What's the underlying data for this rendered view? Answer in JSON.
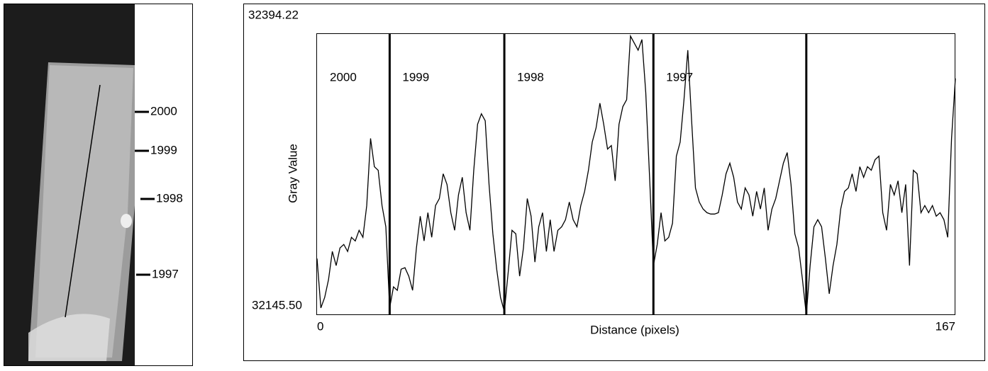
{
  "image_panel": {
    "labels": [
      "2000",
      "1999",
      "1998",
      "1997"
    ]
  },
  "chart_data": {
    "type": "line",
    "xlabel": "Distance (pixels)",
    "ylabel": "Gray Value",
    "x": [
      0,
      1,
      2,
      3,
      4,
      5,
      6,
      7,
      8,
      9,
      10,
      11,
      12,
      13,
      14,
      15,
      16,
      17,
      18,
      19,
      20,
      21,
      22,
      23,
      24,
      25,
      26,
      27,
      28,
      29,
      30,
      31,
      32,
      33,
      34,
      35,
      36,
      37,
      38,
      39,
      40,
      41,
      42,
      43,
      44,
      45,
      46,
      47,
      48,
      49,
      50,
      51,
      52,
      53,
      54,
      55,
      56,
      57,
      58,
      59,
      60,
      61,
      62,
      63,
      64,
      65,
      66,
      67,
      68,
      69,
      70,
      71,
      72,
      73,
      74,
      75,
      76,
      77,
      78,
      79,
      80,
      81,
      82,
      83,
      84,
      85,
      86,
      87,
      88,
      89,
      90,
      91,
      92,
      93,
      94,
      95,
      96,
      97,
      98,
      99,
      100,
      101,
      102,
      103,
      104,
      105,
      106,
      107,
      108,
      109,
      110,
      111,
      112,
      113,
      114,
      115,
      116,
      117,
      118,
      119,
      120,
      121,
      122,
      123,
      124,
      125,
      126,
      127,
      128,
      129,
      130,
      131,
      132,
      133,
      134,
      135,
      136,
      137,
      138,
      139,
      140,
      141,
      142,
      143,
      144,
      145,
      146,
      147,
      148,
      149,
      150,
      151,
      152,
      153,
      154,
      155,
      156,
      157,
      158,
      159,
      160,
      161,
      162,
      163,
      164,
      165,
      166,
      167
    ],
    "series": [
      {
        "color": "#000000",
        "values": [
          32195.5,
          32151.8,
          32161.1,
          32176.8,
          32201.8,
          32189.3,
          32204.9,
          32208.0,
          32201.8,
          32214.3,
          32211.1,
          32220.5,
          32214.3,
          32242.4,
          32301.8,
          32276.8,
          32273.6,
          32242.4,
          32223.6,
          32151.8,
          32170.5,
          32167.4,
          32186.1,
          32187.4,
          32179.9,
          32167.4,
          32204.9,
          32233.0,
          32211.1,
          32236.1,
          32214.3,
          32242.4,
          32248.6,
          32270.5,
          32261.1,
          32236.1,
          32220.5,
          32251.8,
          32267.4,
          32236.1,
          32220.5,
          32273.6,
          32314.3,
          32323.6,
          32317.4,
          32261.1,
          32217.4,
          32186.1,
          32161.1,
          32148.6,
          32183.0,
          32220.5,
          32217.4,
          32179.9,
          32204.9,
          32248.6,
          32233.0,
          32192.4,
          32223.6,
          32236.1,
          32201.8,
          32229.9,
          32201.8,
          32220.5,
          32223.6,
          32229.9,
          32245.5,
          32229.9,
          32223.6,
          32242.4,
          32254.9,
          32273.6,
          32298.6,
          32311.1,
          32333.0,
          32314.3,
          32292.4,
          32295.5,
          32264.3,
          32314.3,
          32329.9,
          32336.1,
          32392.4,
          32386.1,
          32379.9,
          32389.3,
          32342.4,
          32267.4,
          32189.3,
          32208.0,
          32236.1,
          32211.1,
          32214.3,
          32226.8,
          32286.1,
          32298.6,
          32336.1,
          32379.9,
          32317.4,
          32258.0,
          32245.5,
          32239.3,
          32236.1,
          32234.9,
          32234.9,
          32236.1,
          32251.8,
          32270.5,
          32279.9,
          32267.4,
          32245.5,
          32239.3,
          32258.0,
          32251.8,
          32233.0,
          32254.9,
          32239.3,
          32258.0,
          32220.5,
          32239.3,
          32248.6,
          32264.3,
          32279.9,
          32289.3,
          32261.1,
          32217.4,
          32204.9,
          32176.8,
          32145.5,
          32189.3,
          32223.6,
          32229.9,
          32223.6,
          32195.5,
          32164.3,
          32189.3,
          32208.0,
          32239.3,
          32254.9,
          32258.0,
          32270.5,
          32254.9,
          32276.8,
          32267.4,
          32276.8,
          32273.6,
          32283.0,
          32286.1,
          32236.1,
          32220.5,
          32261.1,
          32251.8,
          32264.3,
          32236.1,
          32261.1,
          32189.3,
          32273.6,
          32270.5,
          32236.1,
          32242.4,
          32236.1,
          32242.4,
          32233.0,
          32236.1,
          32229.9,
          32214.3,
          32301.8,
          32354.9
        ]
      }
    ],
    "boundaries": [
      19,
      49,
      88,
      128
    ],
    "annotations": [
      "2000",
      "1999",
      "1998",
      "1997"
    ],
    "xlim": [
      0,
      167
    ],
    "ylim": [
      32145.5,
      32394.22
    ],
    "xticks": [
      0,
      167
    ],
    "yticks": [
      {
        "value": 32145.5,
        "label": "32145.50"
      },
      32394.22
    ]
  }
}
